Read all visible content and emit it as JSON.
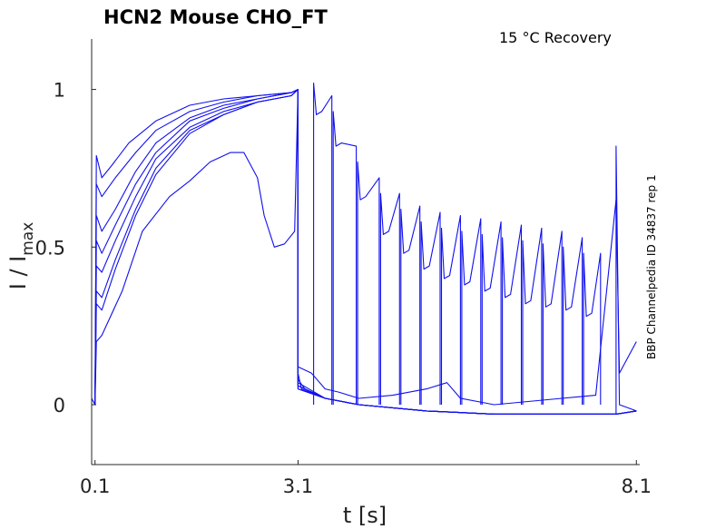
{
  "chart_data": {
    "type": "line",
    "title": "HCN2  Mouse  CHO_FT",
    "condition": "15 °C  Recovery",
    "side_label": "BBP Channelpedia ID 34837 rep 1",
    "xlabel": "t [s]",
    "ylabel_main": "I / I",
    "ylabel_sub": "max",
    "x_ticks": [
      "0.1",
      "3.1",
      "8.1"
    ],
    "y_ticks": [
      "0",
      "0.5",
      "1"
    ],
    "xlim": [
      0.05,
      8.15
    ],
    "ylim": [
      -0.19,
      1.16
    ],
    "line_color": "#1010ee",
    "series": [
      {
        "x": [
          0.05,
          0.1,
          0.12,
          0.2,
          0.35,
          0.6,
          1,
          1.5,
          2,
          2.5,
          3,
          3.1,
          3.1,
          3.15,
          3.5,
          4,
          5,
          6,
          7,
          7.5,
          7.8,
          7.8,
          7.85,
          8.1
        ],
        "y": [
          0.02,
          0,
          0.79,
          0.72,
          0.76,
          0.83,
          0.9,
          0.95,
          0.97,
          0.98,
          0.99,
          1.0,
          0.1,
          0.05,
          0.02,
          0.0,
          -0.02,
          -0.03,
          -0.03,
          -0.03,
          -0.03,
          0.82,
          0.0,
          -0.02
        ]
      },
      {
        "x": [
          0.1,
          0.12,
          0.2,
          0.4,
          0.7,
          1,
          1.5,
          2,
          2.5,
          3,
          3.1,
          3.1,
          3.2,
          3.5,
          4,
          5,
          6,
          7,
          7.8,
          8.1
        ],
        "y": [
          0,
          0.7,
          0.66,
          0.72,
          0.8,
          0.87,
          0.93,
          0.96,
          0.98,
          0.99,
          1.0,
          0.08,
          0.05,
          0.02,
          0.0,
          -0.02,
          -0.03,
          -0.03,
          -0.03,
          -0.02
        ]
      },
      {
        "x": [
          0.1,
          0.12,
          0.2,
          0.4,
          0.7,
          1,
          1.5,
          2,
          2.5,
          3,
          3.1,
          3.1,
          3.5,
          4,
          5,
          6,
          7,
          7.8,
          8.1
        ],
        "y": [
          0,
          0.6,
          0.55,
          0.62,
          0.74,
          0.83,
          0.91,
          0.95,
          0.97,
          0.99,
          1.0,
          0.07,
          0.02,
          0.0,
          -0.02,
          -0.03,
          -0.03,
          -0.03,
          -0.02
        ]
      },
      {
        "x": [
          0.1,
          0.12,
          0.2,
          0.4,
          0.7,
          1,
          1.5,
          2,
          2.5,
          3,
          3.1,
          3.1,
          3.5,
          4,
          5,
          6,
          7,
          7.8,
          8.1
        ],
        "y": [
          0,
          0.52,
          0.48,
          0.57,
          0.7,
          0.8,
          0.9,
          0.94,
          0.97,
          0.99,
          1.0,
          0.06,
          0.02,
          0.0,
          -0.02,
          -0.03,
          -0.03,
          -0.03,
          -0.02
        ]
      },
      {
        "x": [
          0.1,
          0.12,
          0.2,
          0.4,
          0.7,
          1,
          1.5,
          2,
          2.5,
          3,
          3.1,
          3.1,
          3.5,
          4,
          5,
          6,
          7,
          7.8,
          8.1
        ],
        "y": [
          0,
          0.44,
          0.42,
          0.52,
          0.66,
          0.78,
          0.88,
          0.93,
          0.96,
          0.98,
          1.0,
          0.06,
          0.02,
          0.0,
          -0.02,
          -0.03,
          -0.03,
          -0.03,
          -0.02
        ]
      },
      {
        "x": [
          0.1,
          0.12,
          0.2,
          0.4,
          0.7,
          1,
          1.5,
          2,
          2.5,
          3,
          3.1,
          3.1,
          3.5,
          4,
          5,
          6,
          7,
          7.8,
          8.1
        ],
        "y": [
          0,
          0.36,
          0.34,
          0.46,
          0.62,
          0.75,
          0.87,
          0.92,
          0.96,
          0.98,
          1.0,
          0.05,
          0.02,
          0.0,
          -0.02,
          -0.03,
          -0.03,
          -0.03,
          -0.02
        ]
      },
      {
        "x": [
          0.1,
          0.12,
          0.2,
          0.4,
          0.7,
          1,
          1.5,
          2,
          2.5,
          3,
          3.1,
          3.1,
          3.5,
          4,
          5,
          6,
          7,
          7.8,
          8.1
        ],
        "y": [
          0,
          0.32,
          0.3,
          0.43,
          0.6,
          0.73,
          0.86,
          0.92,
          0.96,
          0.98,
          1.0,
          0.05,
          0.02,
          0.0,
          -0.02,
          -0.03,
          -0.03,
          -0.03,
          -0.02
        ]
      },
      {
        "x": [
          0.1,
          0.12,
          0.2,
          0.5,
          0.8,
          1.2,
          1.5,
          1.8,
          2.1,
          2.3,
          2.5,
          2.6,
          2.75,
          2.9,
          3.05,
          3.1,
          3.1,
          3.3,
          3.5,
          3.7,
          4,
          4.5,
          5,
          5.3,
          5.5,
          6,
          7,
          7.5,
          7.8,
          7.85,
          8.1
        ],
        "y": [
          0,
          0.2,
          0.22,
          0.36,
          0.55,
          0.66,
          0.71,
          0.77,
          0.8,
          0.8,
          0.72,
          0.6,
          0.5,
          0.51,
          0.55,
          1.0,
          0.12,
          0.1,
          0.05,
          0.04,
          0.02,
          0.03,
          0.05,
          0.07,
          0.02,
          0.0,
          0.02,
          0.03,
          0.65,
          0.1,
          0.2
        ]
      }
    ],
    "recovery_tests": [
      {
        "x": 3.33,
        "peak": 1.02
      },
      {
        "x": 3.62,
        "peak": 0.93
      },
      {
        "x": 3.98,
        "peak": 0.77
      },
      {
        "x": 4.32,
        "peak": 0.67
      },
      {
        "x": 4.62,
        "peak": 0.62
      },
      {
        "x": 4.92,
        "peak": 0.58
      },
      {
        "x": 5.22,
        "peak": 0.56
      },
      {
        "x": 5.52,
        "peak": 0.55
      },
      {
        "x": 5.82,
        "peak": 0.54
      },
      {
        "x": 6.12,
        "peak": 0.53
      },
      {
        "x": 6.42,
        "peak": 0.52
      },
      {
        "x": 6.72,
        "peak": 0.51
      },
      {
        "x": 7.02,
        "peak": 0.5
      },
      {
        "x": 7.32,
        "peak": 0.48
      }
    ]
  }
}
